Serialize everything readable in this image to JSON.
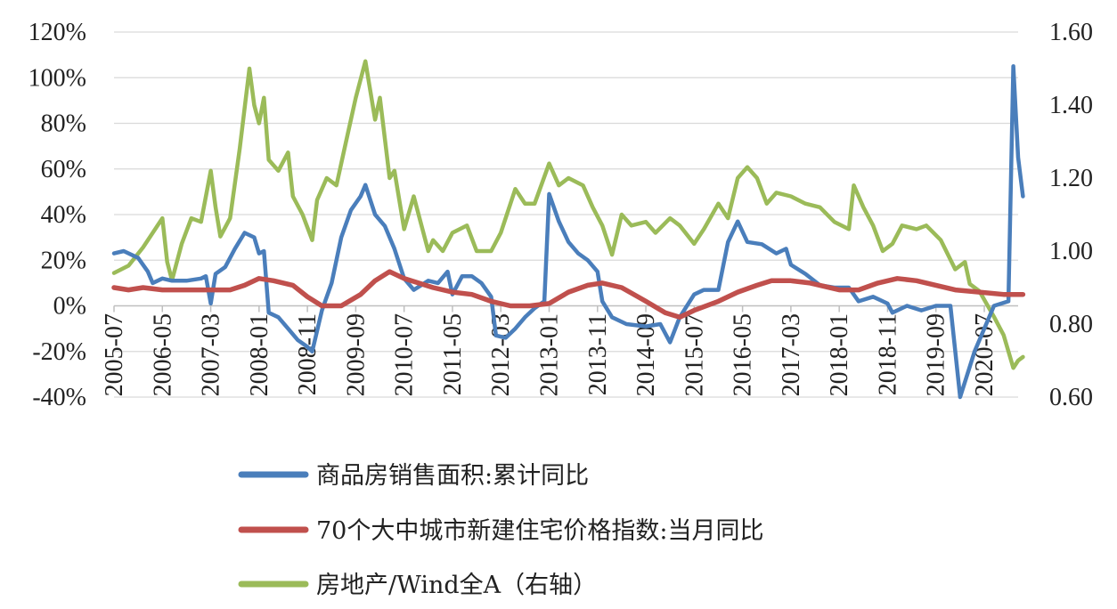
{
  "chart_data": {
    "type": "line",
    "title": "",
    "xlabel": "",
    "ylabel": "",
    "y_left": {
      "range": [
        -0.4,
        1.2
      ],
      "ticks": [
        -0.4,
        -0.2,
        0,
        0.2,
        0.4,
        0.6,
        0.8,
        1.0,
        1.2
      ],
      "tick_labels": [
        "-40%",
        "-20%",
        "0%",
        "20%",
        "40%",
        "60%",
        "80%",
        "100%",
        "120%"
      ]
    },
    "y_right": {
      "range": [
        0.6,
        1.6
      ],
      "ticks": [
        0.6,
        0.8,
        1.0,
        1.2,
        1.4,
        1.6
      ],
      "tick_labels": [
        "0.60",
        "0.80",
        "1.00",
        "1.20",
        "1.40",
        "1.60"
      ]
    },
    "x_axis": {
      "start": "2005-07",
      "end": "2021-02",
      "tick_labels": [
        "2005-07",
        "2006-05",
        "2007-03",
        "2008-01",
        "2008-11",
        "2009-09",
        "2010-07",
        "2011-05",
        "2012-03",
        "2013-01",
        "2013-11",
        "2014-09",
        "2015-07",
        "2016-05",
        "2017-03",
        "2018-01",
        "2018-11",
        "2019-09",
        "2020-07"
      ]
    },
    "grid": "horizontal",
    "legend_position": "bottom",
    "series": [
      {
        "name": "商品房销售面积:累计同比",
        "axis": "left",
        "color": "#4a7ebb",
        "points": [
          [
            "2005-07",
            0.23
          ],
          [
            "2005-09",
            0.24
          ],
          [
            "2005-12",
            0.21
          ],
          [
            "2006-02",
            0.15
          ],
          [
            "2006-03",
            0.1
          ],
          [
            "2006-05",
            0.12
          ],
          [
            "2006-07",
            0.11
          ],
          [
            "2006-10",
            0.11
          ],
          [
            "2007-01",
            0.12
          ],
          [
            "2007-02",
            0.13
          ],
          [
            "2007-03",
            0.01
          ],
          [
            "2007-04",
            0.14
          ],
          [
            "2007-06",
            0.17
          ],
          [
            "2007-08",
            0.25
          ],
          [
            "2007-10",
            0.32
          ],
          [
            "2007-12",
            0.3
          ],
          [
            "2008-01",
            0.23
          ],
          [
            "2008-02",
            0.24
          ],
          [
            "2008-03",
            -0.03
          ],
          [
            "2008-05",
            -0.05
          ],
          [
            "2008-07",
            -0.1
          ],
          [
            "2008-09",
            -0.15
          ],
          [
            "2008-11",
            -0.18
          ],
          [
            "2008-12",
            -0.2
          ],
          [
            "2009-02",
            -0.02
          ],
          [
            "2009-04",
            0.1
          ],
          [
            "2009-06",
            0.3
          ],
          [
            "2009-08",
            0.42
          ],
          [
            "2009-10",
            0.48
          ],
          [
            "2009-11",
            0.53
          ],
          [
            "2010-01",
            0.4
          ],
          [
            "2010-03",
            0.35
          ],
          [
            "2010-05",
            0.25
          ],
          [
            "2010-07",
            0.12
          ],
          [
            "2010-09",
            0.07
          ],
          [
            "2010-12",
            0.11
          ],
          [
            "2011-02",
            0.1
          ],
          [
            "2011-04",
            0.15
          ],
          [
            "2011-05",
            0.05
          ],
          [
            "2011-07",
            0.13
          ],
          [
            "2011-09",
            0.13
          ],
          [
            "2011-11",
            0.1
          ],
          [
            "2012-01",
            0.04
          ],
          [
            "2012-02",
            -0.13
          ],
          [
            "2012-04",
            -0.14
          ],
          [
            "2012-06",
            -0.1
          ],
          [
            "2012-08",
            -0.05
          ],
          [
            "2012-10",
            -0.01
          ],
          [
            "2012-12",
            0.02
          ],
          [
            "2013-01",
            0.49
          ],
          [
            "2013-03",
            0.37
          ],
          [
            "2013-05",
            0.28
          ],
          [
            "2013-07",
            0.23
          ],
          [
            "2013-09",
            0.2
          ],
          [
            "2013-11",
            0.15
          ],
          [
            "2013-12",
            0.02
          ],
          [
            "2014-02",
            -0.05
          ],
          [
            "2014-05",
            -0.08
          ],
          [
            "2014-09",
            -0.09
          ],
          [
            "2014-12",
            -0.08
          ],
          [
            "2015-02",
            -0.16
          ],
          [
            "2015-04",
            -0.05
          ],
          [
            "2015-07",
            0.05
          ],
          [
            "2015-09",
            0.07
          ],
          [
            "2015-12",
            0.07
          ],
          [
            "2016-02",
            0.28
          ],
          [
            "2016-04",
            0.37
          ],
          [
            "2016-06",
            0.28
          ],
          [
            "2016-09",
            0.27
          ],
          [
            "2016-12",
            0.23
          ],
          [
            "2017-02",
            0.25
          ],
          [
            "2017-03",
            0.18
          ],
          [
            "2017-06",
            0.14
          ],
          [
            "2017-09",
            0.09
          ],
          [
            "2017-12",
            0.08
          ],
          [
            "2018-03",
            0.08
          ],
          [
            "2018-05",
            0.02
          ],
          [
            "2018-08",
            0.04
          ],
          [
            "2018-11",
            0.01
          ],
          [
            "2018-12",
            -0.03
          ],
          [
            "2019-03",
            0.0
          ],
          [
            "2019-06",
            -0.02
          ],
          [
            "2019-09",
            0.0
          ],
          [
            "2019-12",
            0.0
          ],
          [
            "2020-02",
            -0.4
          ],
          [
            "2020-05",
            -0.2
          ],
          [
            "2020-07",
            -0.1
          ],
          [
            "2020-09",
            0.0
          ],
          [
            "2020-12",
            0.02
          ],
          [
            "2021-01",
            1.05
          ],
          [
            "2021-02",
            0.65
          ],
          [
            "2021-03",
            0.48
          ]
        ]
      },
      {
        "name": "70个大中城市新建住宅价格指数:当月同比",
        "axis": "left",
        "color": "#c0504d",
        "points": [
          [
            "2005-07",
            0.08
          ],
          [
            "2005-10",
            0.07
          ],
          [
            "2006-01",
            0.08
          ],
          [
            "2006-05",
            0.07
          ],
          [
            "2006-10",
            0.07
          ],
          [
            "2007-03",
            0.07
          ],
          [
            "2007-07",
            0.07
          ],
          [
            "2007-10",
            0.09
          ],
          [
            "2008-01",
            0.12
          ],
          [
            "2008-04",
            0.11
          ],
          [
            "2008-08",
            0.09
          ],
          [
            "2008-11",
            0.04
          ],
          [
            "2009-02",
            0.0
          ],
          [
            "2009-06",
            0.0
          ],
          [
            "2009-10",
            0.05
          ],
          [
            "2010-01",
            0.11
          ],
          [
            "2010-04",
            0.15
          ],
          [
            "2010-07",
            0.12
          ],
          [
            "2010-10",
            0.1
          ],
          [
            "2011-01",
            0.08
          ],
          [
            "2011-05",
            0.06
          ],
          [
            "2011-09",
            0.05
          ],
          [
            "2012-01",
            0.02
          ],
          [
            "2012-05",
            0.0
          ],
          [
            "2012-09",
            0.0
          ],
          [
            "2013-01",
            0.01
          ],
          [
            "2013-05",
            0.06
          ],
          [
            "2013-09",
            0.09
          ],
          [
            "2013-12",
            0.1
          ],
          [
            "2014-04",
            0.08
          ],
          [
            "2014-09",
            0.02
          ],
          [
            "2015-01",
            -0.03
          ],
          [
            "2015-04",
            -0.05
          ],
          [
            "2015-07",
            -0.02
          ],
          [
            "2015-12",
            0.02
          ],
          [
            "2016-04",
            0.06
          ],
          [
            "2016-08",
            0.09
          ],
          [
            "2016-11",
            0.11
          ],
          [
            "2017-03",
            0.11
          ],
          [
            "2017-07",
            0.1
          ],
          [
            "2018-01",
            0.07
          ],
          [
            "2018-05",
            0.07
          ],
          [
            "2018-09",
            0.1
          ],
          [
            "2019-01",
            0.12
          ],
          [
            "2019-05",
            0.11
          ],
          [
            "2019-09",
            0.09
          ],
          [
            "2020-01",
            0.07
          ],
          [
            "2020-06",
            0.06
          ],
          [
            "2020-11",
            0.05
          ],
          [
            "2021-03",
            0.05
          ]
        ]
      },
      {
        "name": "房地产/Wind全A（右轴）",
        "axis": "right",
        "color": "#9bbb59",
        "points": [
          [
            "2005-07",
            0.94
          ],
          [
            "2005-10",
            0.96
          ],
          [
            "2006-01",
            1.01
          ],
          [
            "2006-04",
            1.07
          ],
          [
            "2006-05",
            1.09
          ],
          [
            "2006-06",
            0.97
          ],
          [
            "2006-07",
            0.92
          ],
          [
            "2006-09",
            1.02
          ],
          [
            "2006-11",
            1.09
          ],
          [
            "2007-01",
            1.08
          ],
          [
            "2007-03",
            1.22
          ],
          [
            "2007-04",
            1.12
          ],
          [
            "2007-05",
            1.04
          ],
          [
            "2007-07",
            1.09
          ],
          [
            "2007-09",
            1.28
          ],
          [
            "2007-11",
            1.5
          ],
          [
            "2007-12",
            1.4
          ],
          [
            "2008-01",
            1.35
          ],
          [
            "2008-02",
            1.42
          ],
          [
            "2008-03",
            1.25
          ],
          [
            "2008-05",
            1.22
          ],
          [
            "2008-07",
            1.27
          ],
          [
            "2008-08",
            1.15
          ],
          [
            "2008-10",
            1.1
          ],
          [
            "2008-12",
            1.03
          ],
          [
            "2009-01",
            1.14
          ],
          [
            "2009-03",
            1.2
          ],
          [
            "2009-05",
            1.18
          ],
          [
            "2009-07",
            1.3
          ],
          [
            "2009-09",
            1.42
          ],
          [
            "2009-11",
            1.52
          ],
          [
            "2010-01",
            1.36
          ],
          [
            "2010-02",
            1.42
          ],
          [
            "2010-04",
            1.2
          ],
          [
            "2010-05",
            1.22
          ],
          [
            "2010-07",
            1.06
          ],
          [
            "2010-09",
            1.15
          ],
          [
            "2010-12",
            1.0
          ],
          [
            "2011-01",
            1.03
          ],
          [
            "2011-03",
            1.0
          ],
          [
            "2011-05",
            1.05
          ],
          [
            "2011-08",
            1.07
          ],
          [
            "2011-10",
            1.0
          ],
          [
            "2012-01",
            1.0
          ],
          [
            "2012-03",
            1.05
          ],
          [
            "2012-06",
            1.17
          ],
          [
            "2012-08",
            1.13
          ],
          [
            "2012-10",
            1.13
          ],
          [
            "2013-01",
            1.24
          ],
          [
            "2013-03",
            1.18
          ],
          [
            "2013-05",
            1.2
          ],
          [
            "2013-08",
            1.18
          ],
          [
            "2013-10",
            1.12
          ],
          [
            "2013-12",
            1.07
          ],
          [
            "2014-02",
            0.99
          ],
          [
            "2014-04",
            1.1
          ],
          [
            "2014-06",
            1.07
          ],
          [
            "2014-09",
            1.08
          ],
          [
            "2014-11",
            1.05
          ],
          [
            "2015-02",
            1.09
          ],
          [
            "2015-04",
            1.07
          ],
          [
            "2015-07",
            1.02
          ],
          [
            "2015-09",
            1.06
          ],
          [
            "2015-12",
            1.13
          ],
          [
            "2016-02",
            1.09
          ],
          [
            "2016-04",
            1.2
          ],
          [
            "2016-06",
            1.23
          ],
          [
            "2016-08",
            1.2
          ],
          [
            "2016-10",
            1.13
          ],
          [
            "2016-12",
            1.16
          ],
          [
            "2017-03",
            1.15
          ],
          [
            "2017-06",
            1.13
          ],
          [
            "2017-09",
            1.12
          ],
          [
            "2017-12",
            1.08
          ],
          [
            "2018-03",
            1.06
          ],
          [
            "2018-04",
            1.18
          ],
          [
            "2018-06",
            1.12
          ],
          [
            "2018-08",
            1.07
          ],
          [
            "2018-10",
            1.0
          ],
          [
            "2018-12",
            1.02
          ],
          [
            "2019-02",
            1.07
          ],
          [
            "2019-05",
            1.06
          ],
          [
            "2019-07",
            1.07
          ],
          [
            "2019-10",
            1.03
          ],
          [
            "2020-01",
            0.95
          ],
          [
            "2020-03",
            0.97
          ],
          [
            "2020-04",
            0.91
          ],
          [
            "2020-06",
            0.89
          ],
          [
            "2020-09",
            0.82
          ],
          [
            "2020-11",
            0.77
          ],
          [
            "2021-01",
            0.68
          ],
          [
            "2021-02",
            0.7
          ],
          [
            "2021-03",
            0.71
          ]
        ]
      }
    ]
  }
}
